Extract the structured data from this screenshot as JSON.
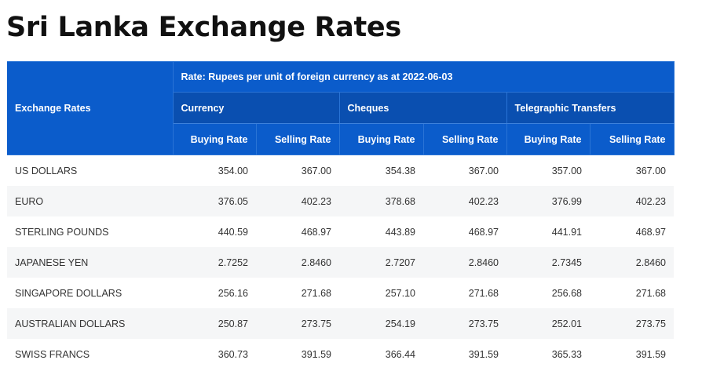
{
  "page": {
    "title": "Sri Lanka Exchange Rates"
  },
  "table": {
    "corner_label": "Exchange Rates",
    "rate_note": "Rate: Rupees per unit of foreign currency as at 2022-06-03",
    "groups": [
      "Currency",
      "Cheques",
      "Telegraphic Transfers"
    ],
    "sub_headers": [
      "Buying Rate",
      "Selling Rate",
      "Buying Rate",
      "Selling Rate",
      "Buying Rate",
      "Selling Rate"
    ],
    "rows": [
      {
        "name": "US DOLLARS",
        "values": [
          "354.00",
          "367.00",
          "354.38",
          "367.00",
          "357.00",
          "367.00"
        ]
      },
      {
        "name": "EURO",
        "values": [
          "376.05",
          "402.23",
          "378.68",
          "402.23",
          "376.99",
          "402.23"
        ]
      },
      {
        "name": "STERLING POUNDS",
        "values": [
          "440.59",
          "468.97",
          "443.89",
          "468.97",
          "441.91",
          "468.97"
        ]
      },
      {
        "name": "JAPANESE YEN",
        "values": [
          "2.7252",
          "2.8460",
          "2.7207",
          "2.8460",
          "2.7345",
          "2.8460"
        ]
      },
      {
        "name": "SINGAPORE DOLLARS",
        "values": [
          "256.16",
          "271.68",
          "257.10",
          "271.68",
          "256.68",
          "271.68"
        ]
      },
      {
        "name": "AUSTRALIAN DOLLARS",
        "values": [
          "250.87",
          "273.75",
          "254.19",
          "273.75",
          "252.01",
          "273.75"
        ]
      },
      {
        "name": "SWISS FRANCS",
        "values": [
          "360.73",
          "391.59",
          "366.44",
          "391.59",
          "365.33",
          "391.59"
        ]
      }
    ]
  }
}
